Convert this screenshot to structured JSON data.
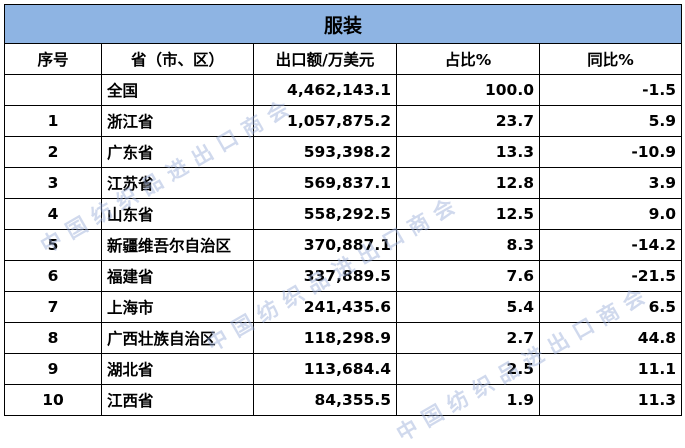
{
  "table": {
    "title": "服装",
    "headers": [
      "序号",
      "省（市、区）",
      "出口额/万美元",
      "占比%",
      "同比%"
    ],
    "rows": [
      [
        "",
        "全国",
        "4,462,143.1",
        "100.0",
        "-1.5"
      ],
      [
        "1",
        "浙江省",
        "1,057,875.2",
        "23.7",
        "5.9"
      ],
      [
        "2",
        "广东省",
        "593,398.2",
        "13.3",
        "-10.9"
      ],
      [
        "3",
        "江苏省",
        "569,837.1",
        "12.8",
        "3.9"
      ],
      [
        "4",
        "山东省",
        "558,292.5",
        "12.5",
        "9.0"
      ],
      [
        "5",
        "新疆维吾尔自治区",
        "370,887.1",
        "8.3",
        "-14.2"
      ],
      [
        "6",
        "福建省",
        "337,889.5",
        "7.6",
        "-21.5"
      ],
      [
        "7",
        "上海市",
        "241,435.6",
        "5.4",
        "6.5"
      ],
      [
        "8",
        "广西壮族自治区",
        "118,298.9",
        "2.7",
        "44.8"
      ],
      [
        "9",
        "湖北省",
        "113,684.4",
        "2.5",
        "11.1"
      ],
      [
        "10",
        "江西省",
        "84,355.5",
        "1.9",
        "11.3"
      ]
    ]
  },
  "watermark": "中国纺织品进出口商会"
}
